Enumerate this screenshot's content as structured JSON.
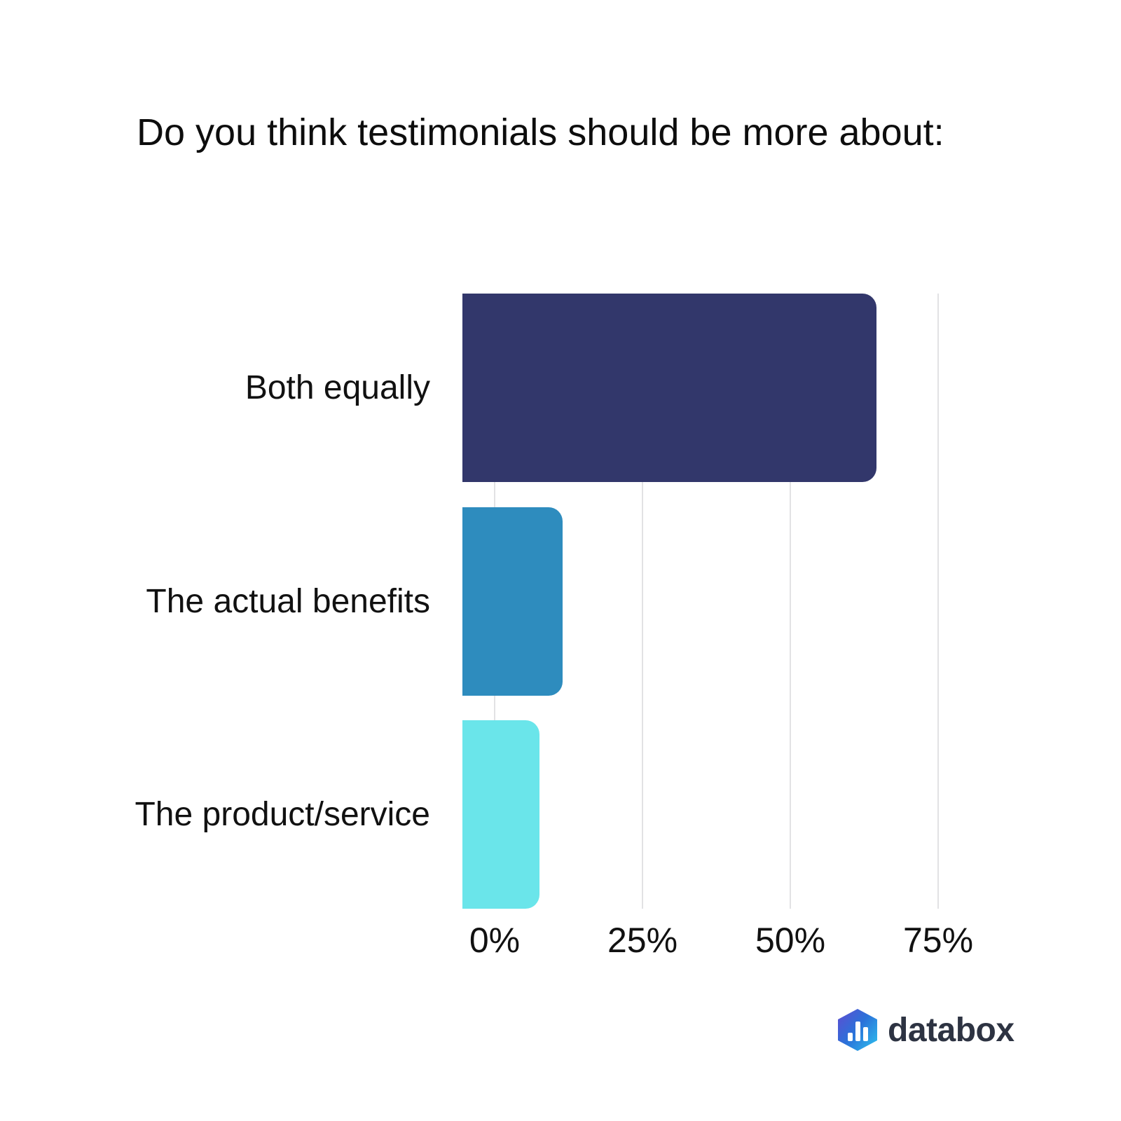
{
  "title": "Do you think testimonials should be more about:",
  "chart_data": {
    "type": "bar",
    "orientation": "horizontal",
    "title": "Do you think testimonials should be more about:",
    "categories": [
      "Both equally",
      "The actual benefits",
      "The product/service"
    ],
    "values": [
      70,
      17,
      13
    ],
    "unit": "%",
    "xlabel": "",
    "ylabel": "",
    "xlim": [
      0,
      75
    ],
    "xticks": [
      {
        "value": 0,
        "label": "0%"
      },
      {
        "value": 25,
        "label": "25%"
      },
      {
        "value": 50,
        "label": "50%"
      },
      {
        "value": 75,
        "label": "75%"
      }
    ],
    "bar_colors": [
      "#32376b",
      "#2e8cbe",
      "#6ae5ea"
    ],
    "gridline_color": "#e2e2e4",
    "grid": "vertical",
    "legend_position": "none"
  },
  "footer": {
    "logo_text": "databox"
  }
}
